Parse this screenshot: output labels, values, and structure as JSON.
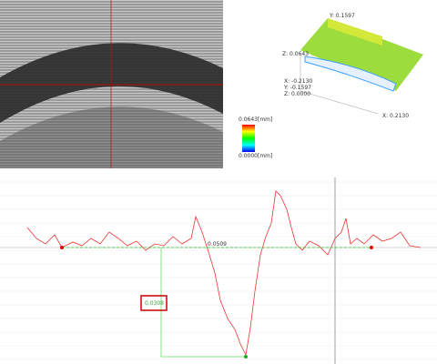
{
  "view3d": {
    "y_max": "Y: 0.1597",
    "z_max": "Z: 0.0643",
    "x_min": "X: -0.2130",
    "y_min": "Y: -0.1597",
    "z_min": "Z: 0.0000",
    "x_max": "X: 0.2130"
  },
  "colorbar": {
    "top": "0.0643[mm]",
    "bottom": "0.0000[mm]"
  },
  "profile": {
    "width_label": "0.0509",
    "depth_label": "0.0308"
  }
}
